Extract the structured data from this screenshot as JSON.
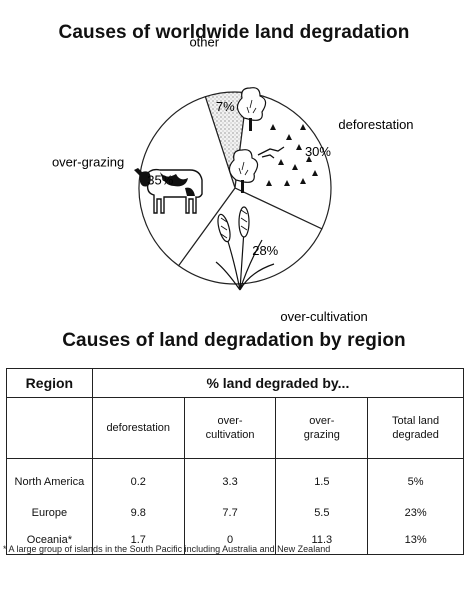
{
  "chart_data": [
    {
      "type": "pie",
      "title": "Causes of worldwide land degradation",
      "slices": [
        {
          "label": "other",
          "value": 7,
          "value_label": "7%"
        },
        {
          "label": "deforestation",
          "value": 30,
          "value_label": "30%"
        },
        {
          "label": "over-cultivation",
          "value": 28,
          "value_label": "28%"
        },
        {
          "label": "over-grazing",
          "value": 35,
          "value_label": "35%"
        }
      ]
    },
    {
      "type": "table",
      "title": "Causes of land degradation by region",
      "header": {
        "region": "Region",
        "group": "% land degraded by...",
        "columns": [
          [
            "deforestation"
          ],
          [
            "over-",
            "cultivation"
          ],
          [
            "over-",
            "grazing"
          ],
          [
            "Total land",
            "degraded"
          ]
        ]
      },
      "rows": [
        {
          "region": "North America",
          "cells": [
            "0.2",
            "3.3",
            "1.5",
            "5%"
          ]
        },
        {
          "region": "Europe",
          "cells": [
            "9.8",
            "7.7",
            "5.5",
            "23%"
          ]
        },
        {
          "region": "Oceania*",
          "cells": [
            "1.7",
            "0",
            "11.3",
            "13%"
          ]
        }
      ],
      "footnote": "* A large group of islands in the South Pacific including Australia and New Zealand"
    }
  ]
}
